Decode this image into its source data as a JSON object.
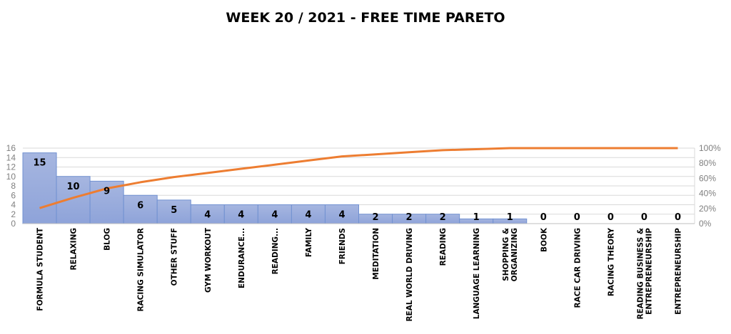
{
  "chart_data": {
    "type": "bar",
    "title": "WEEK 20 / 2021 - FREE TIME PARETO",
    "categories": [
      "FORMULA STUDENT",
      "RELAXING",
      "BLOG",
      "RACING SIMULATOR",
      "OTHER STUFF",
      "GYM WORKOUT",
      "ENDURANCE...",
      "READING...",
      "FAMILY",
      "FRIENDS",
      "MEDITATION",
      "REAL WORLD DRIVING",
      "READING",
      "LANGUAGE LEARNING",
      "SHOPPING & ORGANIZING",
      "BOOK",
      "RACE CAR DRIVING",
      "RACING THEORY",
      "READING BUSINESS & ENTREPRENEURSHIP",
      "ENTREPRENEURSHIP"
    ],
    "values": [
      15,
      10,
      9,
      6,
      5,
      4,
      4,
      4,
      4,
      4,
      2,
      2,
      2,
      1,
      1,
      0,
      0,
      0,
      0,
      0
    ],
    "secondary_series": "cumulative percentage (line)",
    "ylim": [
      0,
      16
    ],
    "yticks": [
      0,
      2,
      4,
      6,
      8,
      10,
      12,
      14,
      16
    ],
    "y2lim": [
      0,
      100
    ],
    "y2ticks": [
      "0%",
      "20%",
      "40%",
      "60%",
      "80%",
      "100%"
    ],
    "grid": true,
    "colors": {
      "bar": "#8ea3d9",
      "bar_border": "#7191d1",
      "line": "#ed7d31",
      "grid": "#d9d9d9"
    }
  }
}
